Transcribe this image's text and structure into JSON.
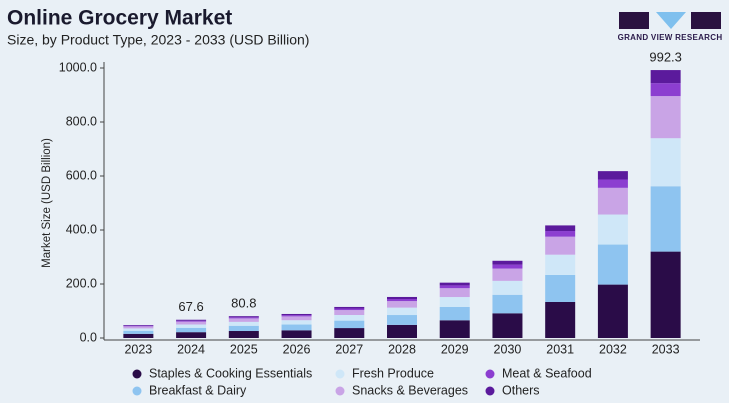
{
  "chart_data": {
    "type": "stacked_bar",
    "title": "Online Grocery Market",
    "subtitle": "Size, by Product Type, 2023 - 2033 (USD Billion)",
    "logo": "GRAND VIEW RESEARCH",
    "y_label": "Market Size (USD Billion)",
    "categories": [
      "2023",
      "2024",
      "2025",
      "2026",
      "2027",
      "2028",
      "2029",
      "2030",
      "2031",
      "2032",
      "2033"
    ],
    "ylim": [
      0,
      1000
    ],
    "yticks": [
      {
        "value": 0,
        "label": "0.0"
      },
      {
        "value": 200,
        "label": "200.0"
      },
      {
        "value": 400,
        "label": "400.0"
      },
      {
        "value": 600,
        "label": "600.0"
      },
      {
        "value": 800,
        "label": "800.0"
      },
      {
        "value": 1000,
        "label": "1000.0"
      }
    ],
    "series": [
      {
        "name": "Staples & Cooking Essentials",
        "color": "#2a0c48",
        "values": [
          15.4,
          21.6,
          25.9,
          28.5,
          36.8,
          48.6,
          65.6,
          91.5,
          133.4,
          197.8,
          320
        ]
      },
      {
        "name": "Breakfast & Dairy",
        "color": "#8ec4f0",
        "values": [
          11.5,
          16.2,
          19.4,
          21.4,
          27.6,
          36.5,
          49.2,
          68.6,
          100.1,
          148.3,
          242
        ]
      },
      {
        "name": "Fresh Produce",
        "color": "#cfe7f8",
        "values": [
          8.6,
          12.2,
          14.5,
          16.0,
          20.7,
          27.4,
          36.9,
          51.5,
          75.1,
          111.2,
          178
        ]
      },
      {
        "name": "Snacks & Beverages",
        "color": "#c9a4e6",
        "values": [
          7.7,
          10.8,
          12.9,
          14.2,
          18.4,
          24.3,
          32.8,
          45.8,
          66.7,
          98.9,
          156
        ]
      },
      {
        "name": "Meat & Seafood",
        "color": "#8c3ed0",
        "values": [
          2.4,
          3.4,
          4.0,
          4.5,
          5.8,
          7.6,
          10.3,
          14.3,
          20.9,
          30.9,
          48
        ]
      },
      {
        "name": "Others",
        "color": "#5b1a9c",
        "values": [
          2.4,
          3.4,
          4.1,
          4.4,
          5.7,
          7.6,
          10.2,
          14.3,
          20.8,
          30.9,
          48.3
        ]
      }
    ],
    "totals": [
      null,
      67.6,
      80.8,
      null,
      null,
      null,
      null,
      null,
      null,
      null,
      992.3
    ],
    "legend_order": [
      0,
      2,
      4,
      1,
      3,
      5
    ]
  }
}
